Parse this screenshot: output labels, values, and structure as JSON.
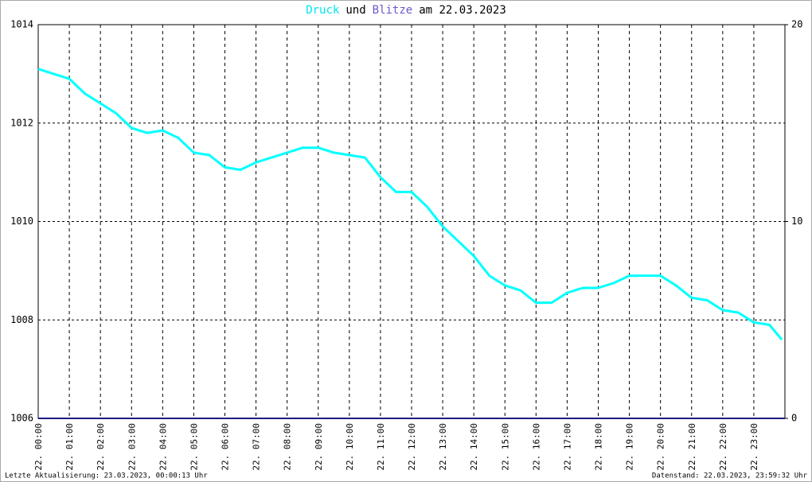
{
  "chart_data": {
    "type": "line",
    "title_parts": [
      {
        "text": "Druck",
        "color": "#00e5ee"
      },
      {
        "text": "und",
        "color": "#000000"
      },
      {
        "text": "Blitze",
        "color": "#6a5acd"
      },
      {
        "text": "am 22.03.2023",
        "color": "#000000"
      }
    ],
    "xlim": [
      0,
      24
    ],
    "xticks": [
      {
        "value": 0,
        "label": "22. 00:00"
      },
      {
        "value": 1,
        "label": "22. 01:00"
      },
      {
        "value": 2,
        "label": "22. 02:00"
      },
      {
        "value": 3,
        "label": "22. 03:00"
      },
      {
        "value": 4,
        "label": "22. 04:00"
      },
      {
        "value": 5,
        "label": "22. 05:00"
      },
      {
        "value": 6,
        "label": "22. 06:00"
      },
      {
        "value": 7,
        "label": "22. 07:00"
      },
      {
        "value": 8,
        "label": "22. 08:00"
      },
      {
        "value": 9,
        "label": "22. 09:00"
      },
      {
        "value": 10,
        "label": "22. 10:00"
      },
      {
        "value": 11,
        "label": "22. 11:00"
      },
      {
        "value": 12,
        "label": "22. 12:00"
      },
      {
        "value": 13,
        "label": "22. 13:00"
      },
      {
        "value": 14,
        "label": "22. 14:00"
      },
      {
        "value": 15,
        "label": "22. 15:00"
      },
      {
        "value": 16,
        "label": "22. 16:00"
      },
      {
        "value": 17,
        "label": "22. 17:00"
      },
      {
        "value": 18,
        "label": "22. 18:00"
      },
      {
        "value": 19,
        "label": "22. 19:00"
      },
      {
        "value": 20,
        "label": "22. 20:00"
      },
      {
        "value": 21,
        "label": "22. 21:00"
      },
      {
        "value": 22,
        "label": "22. 22:00"
      },
      {
        "value": 23,
        "label": "22. 23:00"
      }
    ],
    "ylim": [
      1006,
      1014
    ],
    "yticks": [
      1006,
      1008,
      1010,
      1012,
      1014
    ],
    "y2lim": [
      0,
      20
    ],
    "y2ticks": [
      0,
      10,
      20
    ],
    "grid": true,
    "series": [
      {
        "name": "Druck",
        "color": "#00ffff",
        "x": [
          0,
          0.5,
          1,
          1.5,
          2,
          2.5,
          3,
          3.5,
          4,
          4.5,
          5,
          5.5,
          6,
          6.5,
          7,
          7.5,
          8,
          8.5,
          9,
          9.5,
          10,
          10.5,
          11,
          11.5,
          12,
          12.5,
          13,
          13.5,
          14,
          14.5,
          15,
          15.5,
          16,
          16.5,
          17,
          17.5,
          18,
          18.5,
          19,
          19.5,
          20,
          20.5,
          21,
          21.5,
          22,
          22.5,
          23,
          23.5,
          23.9
        ],
        "values": [
          1013.1,
          1013.0,
          1012.9,
          1012.6,
          1012.4,
          1012.2,
          1011.9,
          1011.8,
          1011.85,
          1011.7,
          1011.4,
          1011.35,
          1011.1,
          1011.05,
          1011.2,
          1011.3,
          1011.4,
          1011.5,
          1011.5,
          1011.4,
          1011.35,
          1011.3,
          1010.9,
          1010.6,
          1010.6,
          1010.3,
          1009.9,
          1009.6,
          1009.3,
          1008.9,
          1008.7,
          1008.6,
          1008.35,
          1008.35,
          1008.55,
          1008.65,
          1008.65,
          1008.75,
          1008.9,
          1008.9,
          1008.9,
          1008.7,
          1008.45,
          1008.4,
          1008.2,
          1008.15,
          1007.95,
          1007.9,
          1007.6
        ]
      },
      {
        "name": "Blitze",
        "color": "#1a1a80",
        "axis": "y2",
        "x": [
          0,
          24
        ],
        "values": [
          0,
          0
        ]
      }
    ],
    "footer_left": "Letzte Aktualisierung: 23.03.2023, 00:00:13 Uhr",
    "footer_right": "Datenstand: 22.03.2023, 23:59:32 Uhr"
  }
}
